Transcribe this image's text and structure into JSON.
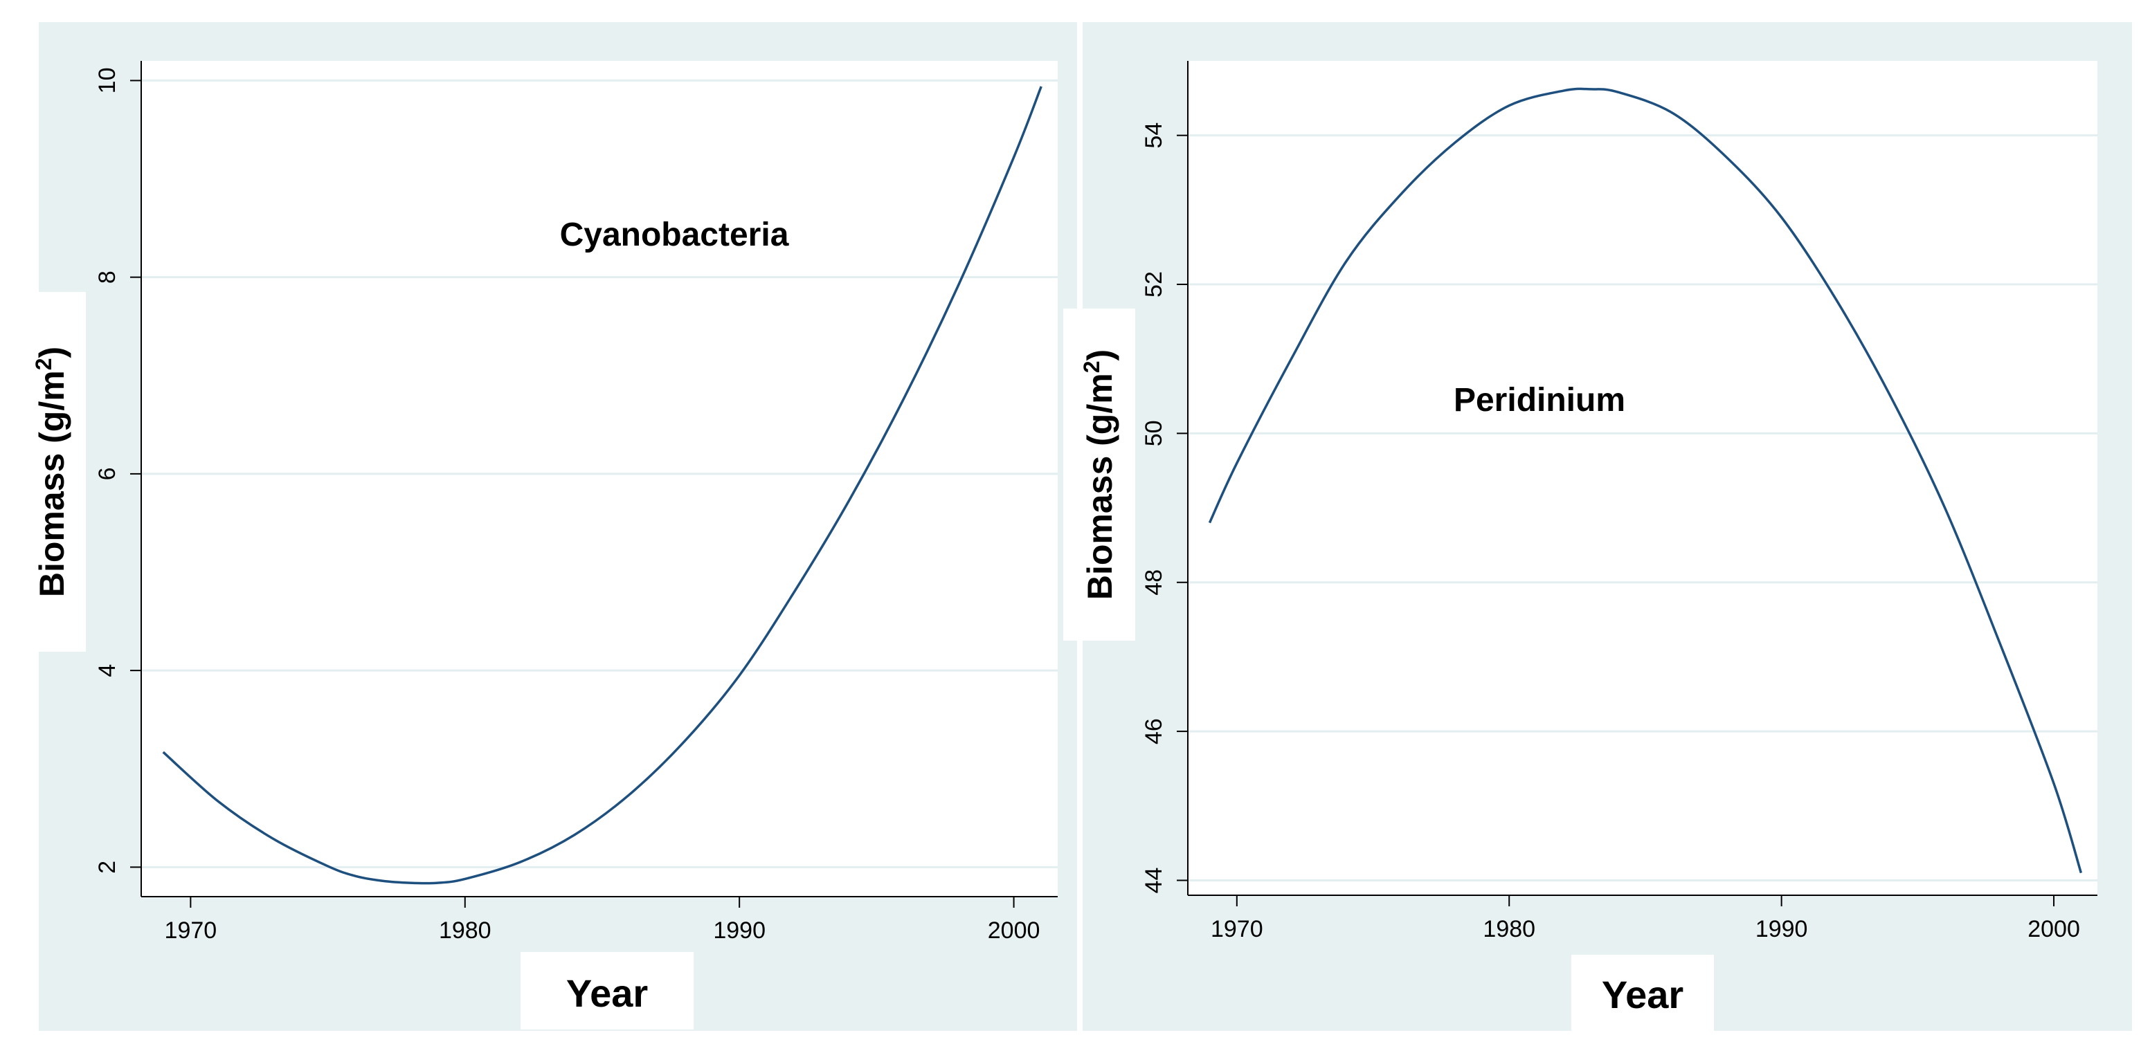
{
  "colors": {
    "outer_background": "#e8f1f2",
    "plot_background": "#ffffff",
    "gridline": "#e3eef0",
    "axis": "#000000",
    "line": "#1d4f7f"
  },
  "chart_data": [
    {
      "type": "line",
      "title": "",
      "annotation": "Cyanobacteria",
      "xlabel": "Year",
      "ylabel": "Biomass (g/m",
      "ylabel_superscript": "2",
      "ylabel_close": ")",
      "xlim": [
        1968.2,
        2001.6
      ],
      "ylim": [
        1.7,
        10.2
      ],
      "xticks": [
        1970,
        1980,
        1990,
        2000
      ],
      "xtick_labels": [
        "1970",
        "1980",
        "1990",
        "2000"
      ],
      "yticks": [
        2,
        4,
        6,
        8,
        10
      ],
      "ytick_labels": [
        "2",
        "4",
        "6",
        "8",
        "10"
      ],
      "grid": true,
      "series": [
        {
          "name": "Cyanobacteria",
          "x": [
            1969,
            1971,
            1973,
            1975,
            1976,
            1977,
            1978,
            1979,
            1980,
            1982,
            1984,
            1986,
            1988,
            1990,
            1992,
            1994,
            1996,
            1998,
            2000,
            2001
          ],
          "y": [
            3.17,
            2.67,
            2.29,
            2.01,
            1.91,
            1.86,
            1.84,
            1.84,
            1.88,
            2.05,
            2.33,
            2.74,
            3.28,
            3.95,
            4.8,
            5.73,
            6.77,
            7.93,
            9.22,
            9.94
          ]
        }
      ]
    },
    {
      "type": "line",
      "title": "",
      "annotation": "Peridinium",
      "xlabel": "Year",
      "ylabel": "Biomass (g/m",
      "ylabel_superscript": "2",
      "ylabel_close": ")",
      "xlim": [
        1968.2,
        2001.6
      ],
      "ylim": [
        43.8,
        55.0
      ],
      "xticks": [
        1970,
        1980,
        1990,
        2000
      ],
      "xtick_labels": [
        "1970",
        "1980",
        "1990",
        "2000"
      ],
      "yticks": [
        44,
        46,
        48,
        50,
        52,
        54
      ],
      "ytick_labels": [
        "44",
        "46",
        "48",
        "50",
        "52",
        "54"
      ],
      "grid": true,
      "series": [
        {
          "name": "Peridinium",
          "x": [
            1969,
            1970,
            1972,
            1974,
            1976,
            1978,
            1980,
            1982,
            1983,
            1984,
            1986,
            1988,
            1990,
            1992,
            1994,
            1996,
            1998,
            2000,
            2001
          ],
          "y": [
            48.8,
            49.6,
            51.0,
            52.3,
            53.2,
            53.9,
            54.4,
            54.6,
            54.62,
            54.58,
            54.3,
            53.7,
            52.9,
            51.8,
            50.5,
            49.0,
            47.2,
            45.3,
            44.1
          ]
        }
      ]
    }
  ]
}
